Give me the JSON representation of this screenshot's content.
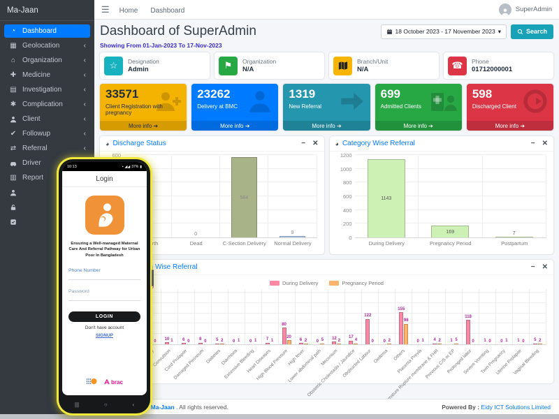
{
  "sidebar": {
    "brand": "Ma-Jaan",
    "items": [
      {
        "label": "Dashboard",
        "icon": "speedometer-icon",
        "active": true,
        "chevron": false
      },
      {
        "label": "Geolocation",
        "icon": "map-icon",
        "chevron": true
      },
      {
        "label": "Organization",
        "icon": "building-icon",
        "chevron": true
      },
      {
        "label": "Medicine",
        "icon": "pills-icon",
        "chevron": true
      },
      {
        "label": "Investigation",
        "icon": "document-icon",
        "chevron": true
      },
      {
        "label": "Complication",
        "icon": "virus-icon",
        "chevron": true
      },
      {
        "label": "Client",
        "icon": "person-icon",
        "chevron": true
      },
      {
        "label": "Followup",
        "icon": "double-check-icon",
        "chevron": true
      },
      {
        "label": "Referral",
        "icon": "exchange-icon",
        "chevron": true
      },
      {
        "label": "Driver",
        "icon": "car-icon",
        "chevron": true
      },
      {
        "label": "Report",
        "icon": "report-icon",
        "chevron": true
      },
      {
        "label": "",
        "icon": "user-icon",
        "chevron": false
      },
      {
        "label": "",
        "icon": "unlock-icon",
        "chevron": false
      },
      {
        "label": "",
        "icon": "check-square-icon",
        "chevron": false
      }
    ]
  },
  "topnav": {
    "links": [
      "Home",
      "Dashboard"
    ],
    "user_name": "SuperAdmin"
  },
  "header": {
    "title": "Dashboard of SuperAdmin",
    "date_range": "18 October 2023 - 17 November 2023",
    "search_label": "Search",
    "showing": "Showing From 01-Jan-2023 To 17-Nov-2023"
  },
  "info_cards": [
    {
      "label": "Designation",
      "value": "Admin",
      "icon": "star-icon",
      "color": "#17b1c0"
    },
    {
      "label": "Organization",
      "value": "N/A",
      "icon": "flag-icon",
      "color": "#28a745"
    },
    {
      "label": "Branch/Unit",
      "value": "N/A",
      "icon": "folded-map-icon",
      "color": "#f7b400"
    },
    {
      "label": "Phone",
      "value": "01712000001",
      "icon": "phone-icon",
      "color": "#dc3545"
    }
  ],
  "stat_cards": [
    {
      "value": "33571",
      "label": "Client Registration with pregnancy",
      "more_label": "More info",
      "color": "#f5b301",
      "dark_text": true,
      "icon": "person-plus-icon"
    },
    {
      "value": "23262",
      "label": "Delivery at BMC",
      "more_label": "More info",
      "color": "#007bff",
      "dark_text": false,
      "icon": "person-icon"
    },
    {
      "value": "1319",
      "label": "New Referral",
      "more_label": "More info",
      "color": "#2496ae",
      "dark_text": false,
      "icon": "arrow-right-icon"
    },
    {
      "value": "699",
      "label": "Admitted Clients",
      "more_label": "More info",
      "color": "#28a745",
      "dark_text": false,
      "icon": "hospital-user-icon"
    },
    {
      "value": "598",
      "label": "Discharged Client",
      "more_label": "More info",
      "color": "#dc3545",
      "dark_text": false,
      "icon": "circle-arrow-icon"
    }
  ],
  "chart_data": [
    {
      "id": "discharge",
      "type": "bar",
      "title": "Discharge Status",
      "icon": "pie-chart-icon",
      "categories": [
        "Still Birth",
        "Dead",
        "C-Section Delivery",
        "Normal Delivery"
      ],
      "values": [
        0,
        0,
        584,
        9
      ],
      "bar_colors": [
        "#a8b388",
        "#a8b388",
        "#a8b388",
        "#aec6e8"
      ],
      "ylim": [
        0,
        600
      ],
      "yticks": [
        0,
        100,
        200,
        300,
        400,
        500,
        600
      ],
      "grid": true,
      "legend": false
    },
    {
      "id": "category",
      "type": "bar",
      "title": "Category Wise Referral",
      "icon": "pie-chart-icon",
      "categories": [
        "During Delivery",
        "Pregnancy Period",
        "Postpartum"
      ],
      "values": [
        1143,
        169,
        7
      ],
      "bar_colors": [
        "#cdf0b5",
        "#cdf0b5",
        "#cdf0b5"
      ],
      "ylim": [
        0,
        1200
      ],
      "yticks": [
        0,
        200,
        400,
        600,
        800,
        1000,
        1200
      ],
      "grid": true,
      "legend": false
    },
    {
      "id": "complication",
      "type": "bar",
      "title": "Complication Wise Referral",
      "icon": "pie-chart-icon",
      "legend": true,
      "legend_position": "top",
      "categories": [
        "",
        "on History",
        "Convulsion",
        "Cord Prolapse",
        "Damaged Perineum",
        "Diabetes",
        "Diarrhoea",
        "Excessive Bleeding",
        "Heart Diseases",
        "High Blood Pressure",
        "High fever",
        "Lower abdominal pain",
        "Meconium",
        "Obstetric Cholestasis / Jaundice",
        "Obstructed Labour",
        "Oedema",
        "Others",
        "Placenta Previa",
        "Premature Rupture membrane & FHR",
        "Previous C/S or EP",
        "Prolonged labor",
        "Severe Vomiting",
        "Twin Pregnancy",
        "Uterine Prolapse",
        "Vaginal Bleeding"
      ],
      "series": [
        {
          "name": "During Delivery",
          "color": "#f888a4",
          "values": [
            4,
            259,
            10,
            6,
            8,
            5,
            0,
            0,
            7,
            80,
            6,
            0,
            12,
            17,
            122,
            0,
            155,
            0,
            4,
            1,
            118,
            1,
            0,
            1,
            5
          ]
        },
        {
          "name": "Pregnancy Period",
          "color": "#fbb469",
          "values": [
            null,
            0,
            1,
            0,
            0,
            2,
            1,
            1,
            1,
            20,
            2,
            5,
            2,
            4,
            0,
            2,
            98,
            1,
            2,
            5,
            0,
            0,
            1,
            0,
            2
          ]
        }
      ],
      "ylim": [
        0,
        270
      ],
      "yticks": [
        0,
        50,
        100,
        150,
        200,
        250
      ],
      "grid": true
    }
  ],
  "phone": {
    "status_time": "10:13",
    "battery": "37%",
    "title": "Login",
    "tagline": "Ensuring a Well-managed Maternal Care And Referral Pathway for Urban Poor In Bangladesh",
    "phone_label": "Phone Number",
    "password_label": "Password",
    "login_label": "LOGIN",
    "no_account_text": "Don't have account",
    "signup_label": "SIGNUP",
    "brac_label": "brac"
  },
  "footer": {
    "copyright": "Copyright © 2023",
    "brand": "Ma-Jaan",
    "rights": ". All rights reserved.",
    "powered_label": "Powered By :",
    "powered_brand": "Eidy ICT Solutions Limited"
  }
}
